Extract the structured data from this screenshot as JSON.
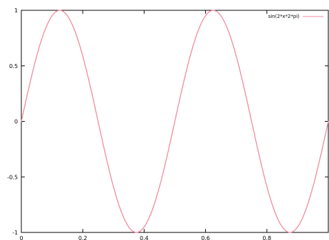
{
  "chart_data": {
    "type": "line",
    "title": "",
    "xlabel": "",
    "ylabel": "",
    "xlim": [
      0,
      1
    ],
    "ylim": [
      -1,
      1
    ],
    "x_ticks": [
      0,
      0.2,
      0.4,
      0.6,
      0.8
    ],
    "x_tick_labels": [
      "0",
      "0.2",
      "0.4",
      "0.6",
      "0.8"
    ],
    "y_ticks": [
      -1,
      -0.5,
      0,
      0.5,
      1
    ],
    "y_tick_labels": [
      "-1",
      "-0.5",
      "0",
      "0.5",
      "1"
    ],
    "grid": false,
    "legend_position": "top-right",
    "series": [
      {
        "name": "sin(2*x*2*pi)",
        "color": "#f08a9a",
        "x": [
          0,
          0.025,
          0.05,
          0.075,
          0.1,
          0.125,
          0.15,
          0.175,
          0.2,
          0.225,
          0.25,
          0.275,
          0.3,
          0.325,
          0.35,
          0.375,
          0.4,
          0.425,
          0.45,
          0.475,
          0.5,
          0.525,
          0.55,
          0.575,
          0.6,
          0.625,
          0.65,
          0.675,
          0.7,
          0.725,
          0.75,
          0.775,
          0.8,
          0.825,
          0.85,
          0.875,
          0.9,
          0.925,
          0.95,
          0.975,
          1.0
        ],
        "y": [
          0,
          0.309,
          0.588,
          0.809,
          0.951,
          1.0,
          0.951,
          0.809,
          0.588,
          0.309,
          0,
          -0.309,
          -0.588,
          -0.809,
          -0.951,
          -1.0,
          -0.951,
          -0.809,
          -0.588,
          -0.309,
          0,
          0.309,
          0.588,
          0.809,
          0.951,
          1.0,
          0.951,
          0.809,
          0.588,
          0.309,
          0,
          -0.309,
          -0.588,
          -0.809,
          -0.951,
          -1.0,
          -0.951,
          -0.809,
          -0.588,
          -0.309,
          0
        ]
      }
    ]
  }
}
